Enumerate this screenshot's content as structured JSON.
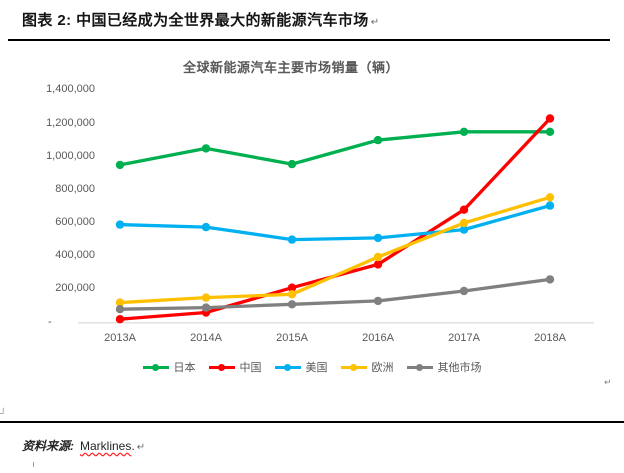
{
  "figure": {
    "caption": "图表 2: 中国已经成为全世界最大的新能源汽车市场",
    "return_mark": "↵"
  },
  "chart_data": {
    "type": "line",
    "title": "全球新能源汽车主要市场销量（辆）",
    "categories": [
      "2013A",
      "2014A",
      "2015A",
      "2016A",
      "2017A",
      "2018A"
    ],
    "series": [
      {
        "name": "日本",
        "color": "#00B050",
        "values": [
          950000,
          1050000,
          955000,
          1100000,
          1150000,
          1150000
        ]
      },
      {
        "name": "中国",
        "color": "#FF0000",
        "values": [
          20000,
          60000,
          210000,
          350000,
          680000,
          1230000
        ]
      },
      {
        "name": "美国",
        "color": "#00B0F0",
        "values": [
          590000,
          575000,
          500000,
          510000,
          560000,
          705000
        ]
      },
      {
        "name": "欧洲",
        "color": "#FFC000",
        "values": [
          120000,
          150000,
          170000,
          395000,
          600000,
          755000
        ]
      },
      {
        "name": "其他市场",
        "color": "#808080",
        "values": [
          80000,
          90000,
          110000,
          130000,
          190000,
          260000
        ]
      }
    ],
    "ylim": [
      0,
      1400000
    ],
    "ytick_interval": 200000,
    "ytick_labels": [
      "-",
      "200,000",
      "400,000",
      "600,000",
      "800,000",
      "1,000,000",
      "1,200,000",
      "1,400,000"
    ],
    "grid": false,
    "legend_position": "bottom",
    "marker": "circle",
    "axis_color": "#D9D9D9",
    "tick_text_color": "#595959"
  },
  "source": {
    "label": "资料来源:",
    "value": "Marklines",
    "period": ".",
    "return_mark": "↵"
  },
  "marks": {
    "cell_corner": "┘"
  }
}
